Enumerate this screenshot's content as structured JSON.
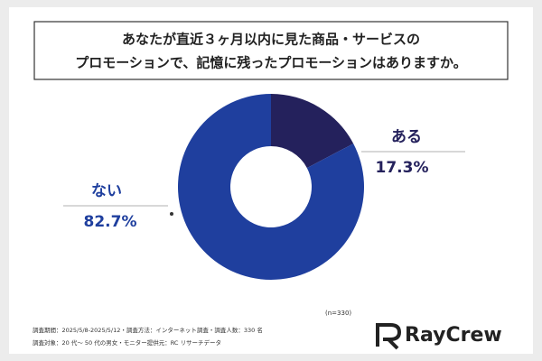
{
  "chart_data": {
    "type": "donut",
    "title": [
      "あなたが直近３ヶ月以内に見た商品・サービスの",
      "プロモーションで、記憶に残ったプロモーションはありますか。"
    ],
    "categories": [
      "ある",
      "ない"
    ],
    "values": [
      17.3,
      82.7
    ],
    "value_labels": [
      "17.3%",
      "82.7%"
    ],
    "colors": [
      "#24215c",
      "#1f3f9e"
    ],
    "note": "(n=330)"
  },
  "footer": {
    "lines": [
      "調査期間：2025/5/8-2025/5/12・調査方法：インターネット調査・調査人数：330 名",
      "調査対象：20 代〜 50 代の男女・モニター提供元：RC リサーチデータ"
    ],
    "logo": "RayCrew"
  }
}
